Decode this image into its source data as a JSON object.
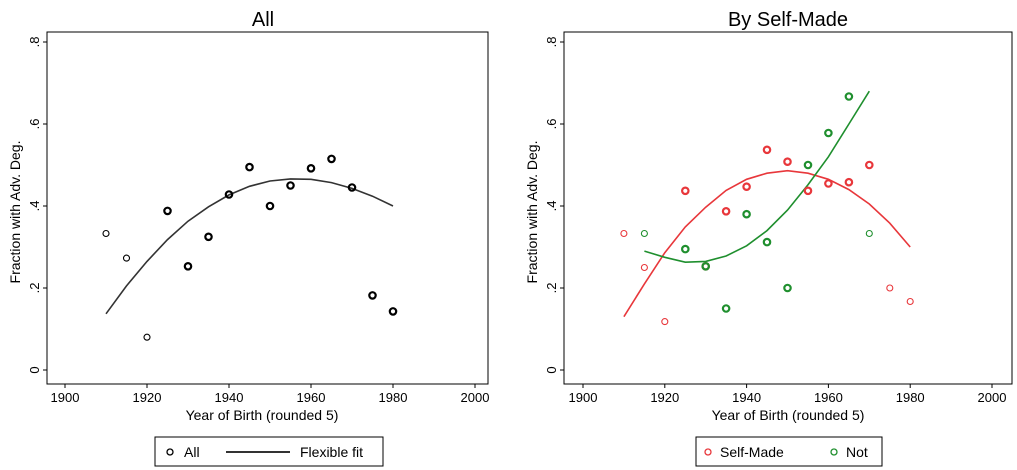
{
  "chart_data": [
    {
      "type": "scatter",
      "title": "All",
      "xlabel": "Year of Birth (rounded 5)",
      "ylabel": "Fraction with Adv. Deg.",
      "xlim": [
        1900,
        2000
      ],
      "ylim": [
        0,
        0.8
      ],
      "xticks": [
        1900,
        1920,
        1940,
        1960,
        1980,
        2000
      ],
      "xtick_labels": [
        "1900",
        "1920",
        "1940",
        "1960",
        "1980",
        "2000"
      ],
      "yticks": [
        0,
        0.2,
        0.4,
        0.6,
        0.8
      ],
      "ytick_labels": [
        "0",
        ".2",
        ".4",
        ".6",
        ".8"
      ],
      "grid": false,
      "legend_position": "bottom",
      "series": [
        {
          "name": "All",
          "kind": "scatter",
          "color": "#000000",
          "points": [
            {
              "x": 1910,
              "y": 0.333,
              "bold": false
            },
            {
              "x": 1915,
              "y": 0.273,
              "bold": false
            },
            {
              "x": 1920,
              "y": 0.08,
              "bold": false
            },
            {
              "x": 1925,
              "y": 0.388,
              "bold": true
            },
            {
              "x": 1930,
              "y": 0.253,
              "bold": true
            },
            {
              "x": 1935,
              "y": 0.325,
              "bold": true
            },
            {
              "x": 1940,
              "y": 0.428,
              "bold": true
            },
            {
              "x": 1945,
              "y": 0.495,
              "bold": true
            },
            {
              "x": 1950,
              "y": 0.4,
              "bold": true
            },
            {
              "x": 1955,
              "y": 0.45,
              "bold": true
            },
            {
              "x": 1960,
              "y": 0.492,
              "bold": true
            },
            {
              "x": 1965,
              "y": 0.515,
              "bold": true
            },
            {
              "x": 1970,
              "y": 0.445,
              "bold": true
            },
            {
              "x": 1975,
              "y": 0.182,
              "bold": true
            },
            {
              "x": 1980,
              "y": 0.143,
              "bold": true
            }
          ]
        },
        {
          "name": "Flexible fit",
          "kind": "line",
          "color": "#333333",
          "points": [
            {
              "x": 1910,
              "y": 0.137
            },
            {
              "x": 1915,
              "y": 0.205
            },
            {
              "x": 1920,
              "y": 0.265
            },
            {
              "x": 1925,
              "y": 0.318
            },
            {
              "x": 1930,
              "y": 0.363
            },
            {
              "x": 1935,
              "y": 0.398
            },
            {
              "x": 1940,
              "y": 0.427
            },
            {
              "x": 1945,
              "y": 0.448
            },
            {
              "x": 1950,
              "y": 0.461
            },
            {
              "x": 1955,
              "y": 0.466
            },
            {
              "x": 1960,
              "y": 0.465
            },
            {
              "x": 1965,
              "y": 0.457
            },
            {
              "x": 1970,
              "y": 0.443
            },
            {
              "x": 1975,
              "y": 0.424
            },
            {
              "x": 1980,
              "y": 0.4
            }
          ]
        }
      ]
    },
    {
      "type": "scatter",
      "title": "By Self-Made",
      "xlabel": "Year of Birth (rounded 5)",
      "ylabel": "Fraction with Adv. Deg.",
      "xlim": [
        1900,
        2000
      ],
      "ylim": [
        0,
        0.8
      ],
      "xticks": [
        1900,
        1920,
        1940,
        1960,
        1980,
        2000
      ],
      "xtick_labels": [
        "1900",
        "1920",
        "1940",
        "1960",
        "1980",
        "2000"
      ],
      "yticks": [
        0,
        0.2,
        0.4,
        0.6,
        0.8
      ],
      "ytick_labels": [
        "0",
        ".2",
        ".4",
        ".6",
        ".8"
      ],
      "grid": false,
      "legend_position": "bottom",
      "series": [
        {
          "name": "Self-Made",
          "kind": "scatter",
          "color": "#e8373b",
          "points": [
            {
              "x": 1910,
              "y": 0.333,
              "bold": false
            },
            {
              "x": 1915,
              "y": 0.25,
              "bold": false
            },
            {
              "x": 1920,
              "y": 0.118,
              "bold": false
            },
            {
              "x": 1925,
              "y": 0.437,
              "bold": true
            },
            {
              "x": 1930,
              "y": 0.253,
              "bold": true
            },
            {
              "x": 1935,
              "y": 0.387,
              "bold": true
            },
            {
              "x": 1940,
              "y": 0.447,
              "bold": true
            },
            {
              "x": 1945,
              "y": 0.537,
              "bold": true
            },
            {
              "x": 1950,
              "y": 0.508,
              "bold": true
            },
            {
              "x": 1955,
              "y": 0.437,
              "bold": true
            },
            {
              "x": 1960,
              "y": 0.455,
              "bold": true
            },
            {
              "x": 1965,
              "y": 0.458,
              "bold": true
            },
            {
              "x": 1970,
              "y": 0.5,
              "bold": true
            },
            {
              "x": 1975,
              "y": 0.2,
              "bold": false
            },
            {
              "x": 1980,
              "y": 0.167,
              "bold": false
            }
          ]
        },
        {
          "name": "Not",
          "kind": "scatter",
          "color": "#1f8f2e",
          "points": [
            {
              "x": 1915,
              "y": 0.333,
              "bold": false
            },
            {
              "x": 1925,
              "y": 0.295,
              "bold": true
            },
            {
              "x": 1930,
              "y": 0.253,
              "bold": true
            },
            {
              "x": 1935,
              "y": 0.15,
              "bold": true
            },
            {
              "x": 1940,
              "y": 0.38,
              "bold": true
            },
            {
              "x": 1945,
              "y": 0.312,
              "bold": true
            },
            {
              "x": 1950,
              "y": 0.2,
              "bold": true
            },
            {
              "x": 1955,
              "y": 0.5,
              "bold": true
            },
            {
              "x": 1960,
              "y": 0.578,
              "bold": true
            },
            {
              "x": 1965,
              "y": 0.667,
              "bold": true
            },
            {
              "x": 1970,
              "y": 0.333,
              "bold": false
            }
          ]
        },
        {
          "name": "Self-Made fit",
          "kind": "line",
          "color": "#e8373b",
          "points": [
            {
              "x": 1910,
              "y": 0.13
            },
            {
              "x": 1915,
              "y": 0.21
            },
            {
              "x": 1920,
              "y": 0.286
            },
            {
              "x": 1925,
              "y": 0.349
            },
            {
              "x": 1930,
              "y": 0.397
            },
            {
              "x": 1935,
              "y": 0.438
            },
            {
              "x": 1940,
              "y": 0.465
            },
            {
              "x": 1945,
              "y": 0.48
            },
            {
              "x": 1950,
              "y": 0.486
            },
            {
              "x": 1955,
              "y": 0.48
            },
            {
              "x": 1960,
              "y": 0.465
            },
            {
              "x": 1965,
              "y": 0.44
            },
            {
              "x": 1970,
              "y": 0.405
            },
            {
              "x": 1975,
              "y": 0.358
            },
            {
              "x": 1980,
              "y": 0.3
            }
          ]
        },
        {
          "name": "Not fit",
          "kind": "line",
          "color": "#1f8f2e",
          "points": [
            {
              "x": 1915,
              "y": 0.29
            },
            {
              "x": 1920,
              "y": 0.275
            },
            {
              "x": 1925,
              "y": 0.263
            },
            {
              "x": 1930,
              "y": 0.265
            },
            {
              "x": 1935,
              "y": 0.278
            },
            {
              "x": 1940,
              "y": 0.303
            },
            {
              "x": 1945,
              "y": 0.34
            },
            {
              "x": 1950,
              "y": 0.39
            },
            {
              "x": 1955,
              "y": 0.452
            },
            {
              "x": 1960,
              "y": 0.52
            },
            {
              "x": 1965,
              "y": 0.6
            },
            {
              "x": 1970,
              "y": 0.68
            }
          ]
        }
      ],
      "legend_entries": [
        "Self-Made",
        "Not"
      ]
    }
  ],
  "legends": [
    {
      "entries": [
        {
          "label": "All",
          "kind": "marker",
          "color": "#000000"
        },
        {
          "label": "Flexible fit",
          "kind": "line",
          "color": "#333333"
        }
      ]
    },
    {
      "entries": [
        {
          "label": "Self-Made",
          "kind": "marker",
          "color": "#e8373b"
        },
        {
          "label": "Not",
          "kind": "marker",
          "color": "#1f8f2e"
        }
      ]
    }
  ]
}
